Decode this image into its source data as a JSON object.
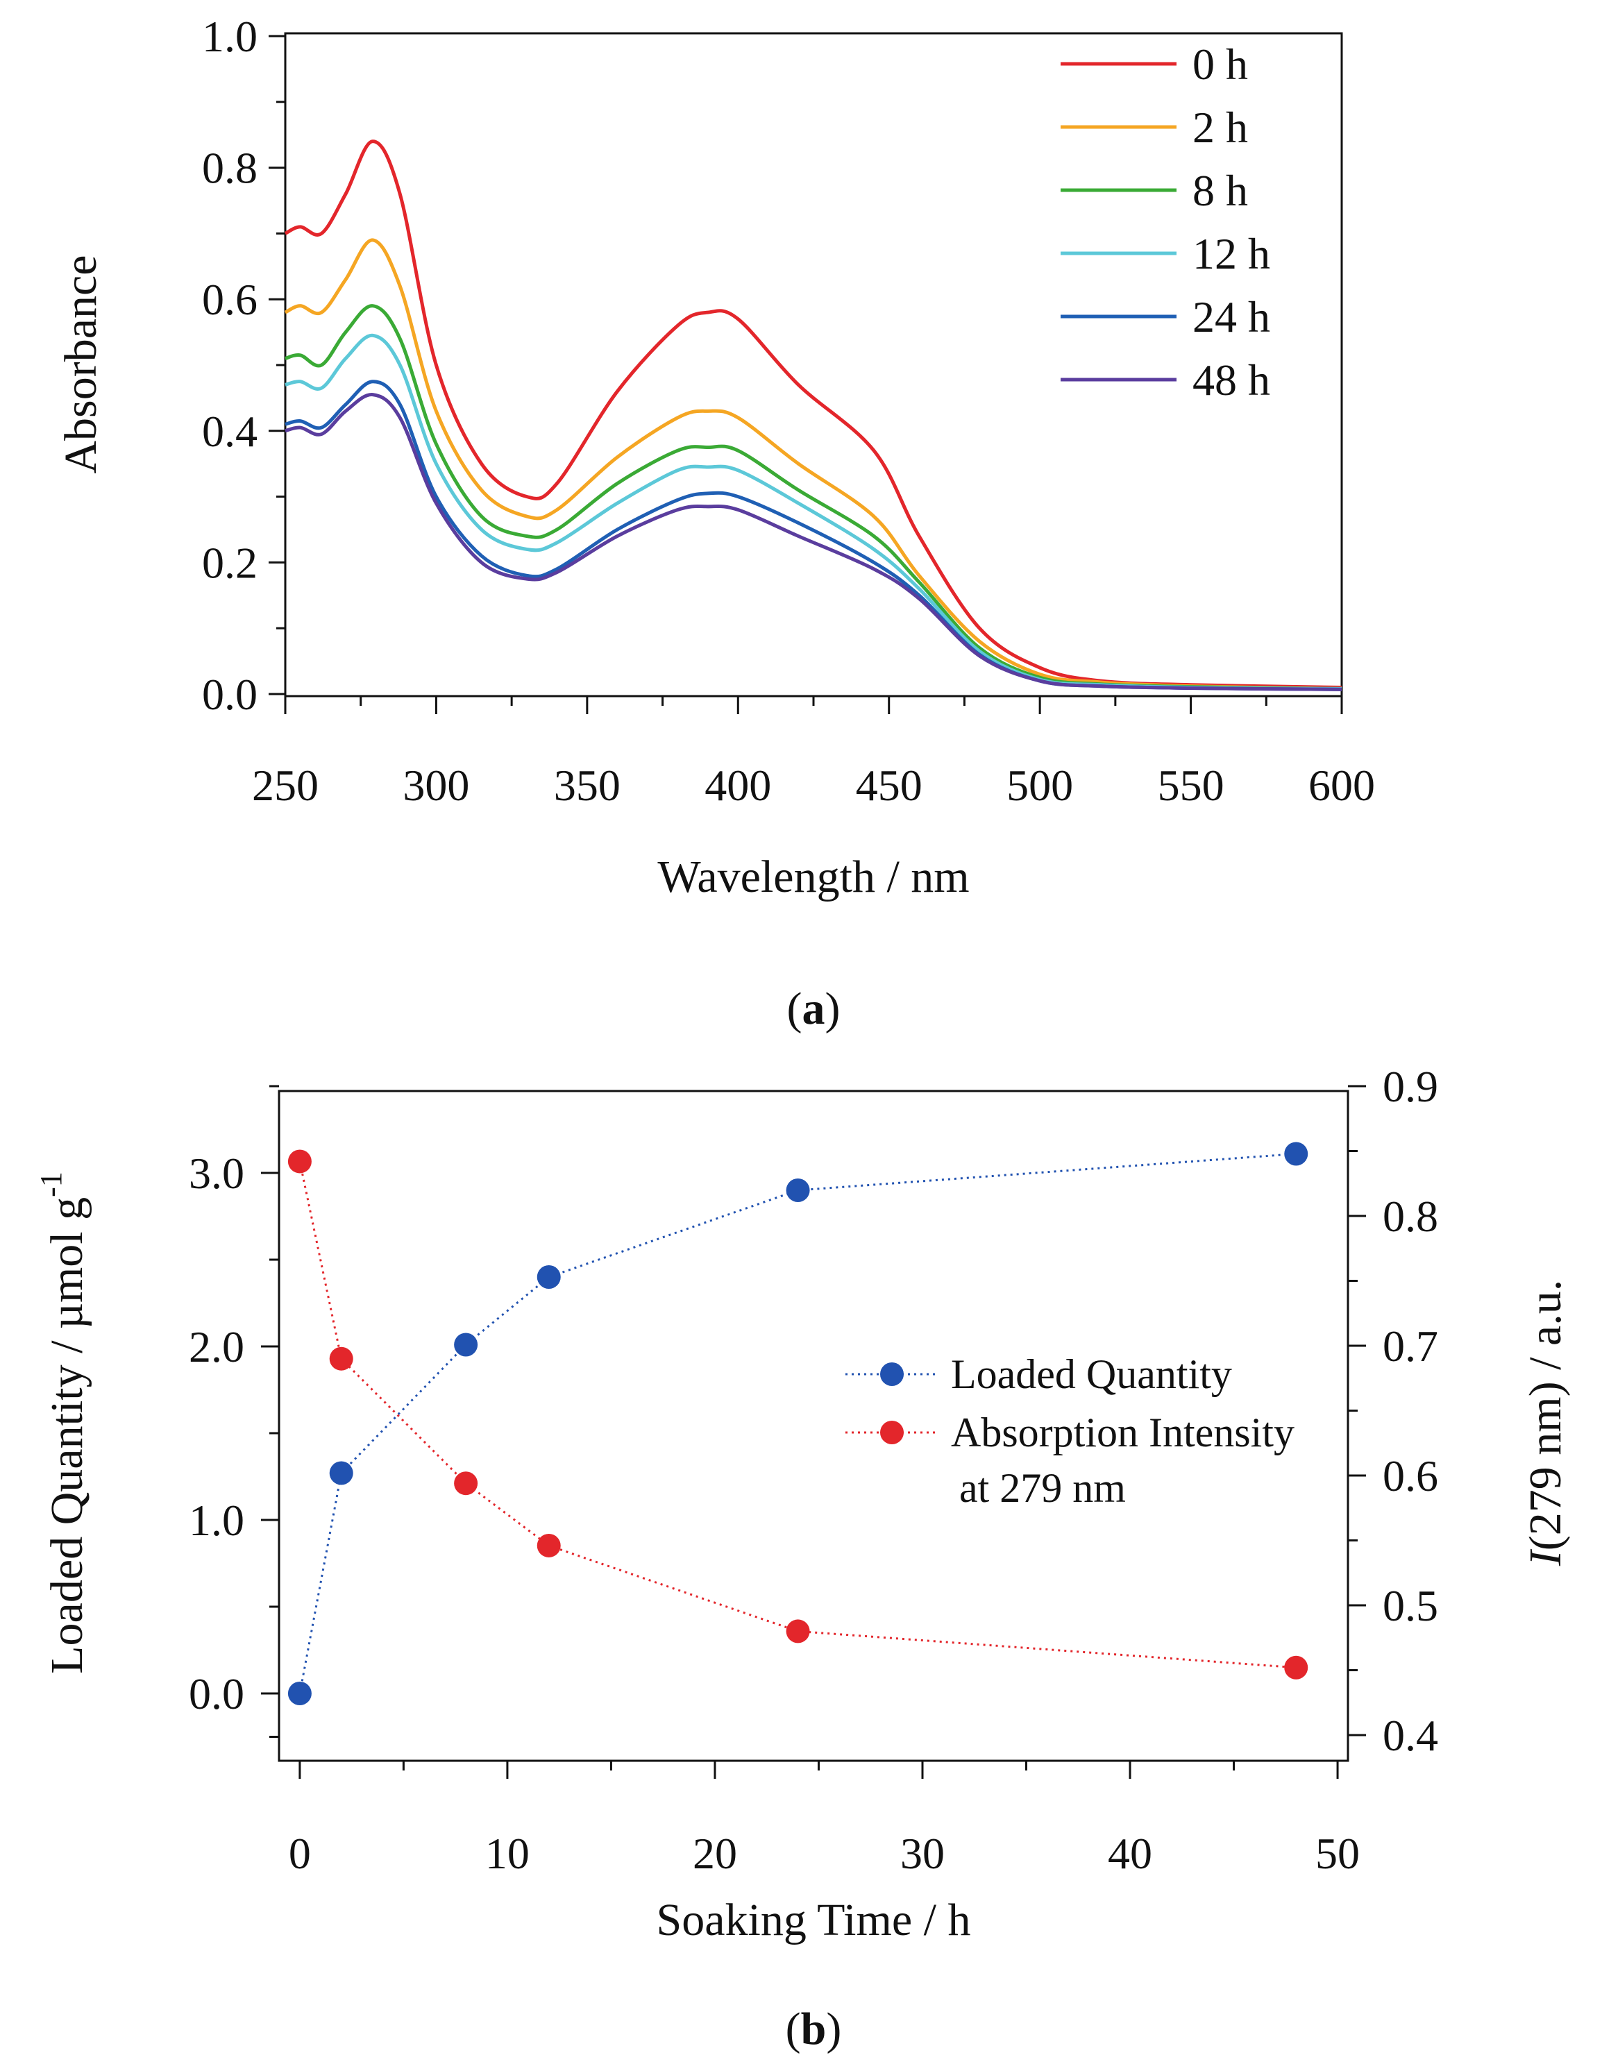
{
  "chart_data": [
    {
      "panel_label": "a",
      "type": "line",
      "xlabel": "Wavelength / nm",
      "ylabel": "Absorbance",
      "xlim": [
        250,
        600
      ],
      "ylim": [
        0.0,
        1.0
      ],
      "xticks": [
        250,
        300,
        350,
        400,
        450,
        500,
        550,
        600
      ],
      "yticks": [
        0.0,
        0.2,
        0.4,
        0.6,
        0.8,
        1.0
      ],
      "ytick_labels": [
        "0.0",
        "0.2",
        "0.4",
        "0.6",
        "0.8",
        "1.0"
      ],
      "legend_position": "top-right",
      "x": [
        250,
        255,
        262,
        270,
        279,
        288,
        300,
        315,
        330,
        340,
        360,
        380,
        390,
        400,
        420,
        445,
        460,
        480,
        500,
        520,
        550,
        600
      ],
      "series": [
        {
          "name": "0 h",
          "color": "#e3262b",
          "values": [
            0.7,
            0.71,
            0.7,
            0.76,
            0.84,
            0.76,
            0.5,
            0.35,
            0.3,
            0.32,
            0.46,
            0.56,
            0.58,
            0.57,
            0.47,
            0.37,
            0.24,
            0.1,
            0.04,
            0.02,
            0.014,
            0.01
          ]
        },
        {
          "name": "2 h",
          "color": "#f5a623",
          "values": [
            0.58,
            0.59,
            0.58,
            0.63,
            0.69,
            0.62,
            0.43,
            0.31,
            0.27,
            0.28,
            0.36,
            0.42,
            0.43,
            0.42,
            0.35,
            0.27,
            0.18,
            0.08,
            0.03,
            0.018,
            0.012,
            0.008
          ]
        },
        {
          "name": "8 h",
          "color": "#3aaa35",
          "values": [
            0.51,
            0.515,
            0.5,
            0.55,
            0.59,
            0.54,
            0.38,
            0.27,
            0.24,
            0.25,
            0.32,
            0.37,
            0.375,
            0.37,
            0.31,
            0.24,
            0.17,
            0.07,
            0.025,
            0.015,
            0.011,
            0.008
          ]
        },
        {
          "name": "12 h",
          "color": "#5cc8d8",
          "values": [
            0.47,
            0.475,
            0.465,
            0.51,
            0.545,
            0.5,
            0.35,
            0.25,
            0.22,
            0.23,
            0.29,
            0.34,
            0.345,
            0.34,
            0.29,
            0.22,
            0.16,
            0.065,
            0.022,
            0.014,
            0.01,
            0.008
          ]
        },
        {
          "name": "24 h",
          "color": "#1f5fb4",
          "values": [
            0.41,
            0.415,
            0.405,
            0.44,
            0.475,
            0.44,
            0.3,
            0.21,
            0.18,
            0.19,
            0.25,
            0.295,
            0.305,
            0.3,
            0.26,
            0.2,
            0.15,
            0.06,
            0.02,
            0.012,
            0.009,
            0.007
          ]
        },
        {
          "name": "48 h",
          "color": "#5a3d9e",
          "values": [
            0.4,
            0.405,
            0.395,
            0.43,
            0.455,
            0.42,
            0.29,
            0.2,
            0.175,
            0.185,
            0.24,
            0.28,
            0.285,
            0.28,
            0.24,
            0.19,
            0.145,
            0.058,
            0.02,
            0.012,
            0.009,
            0.007
          ]
        }
      ]
    },
    {
      "panel_label": "b",
      "type": "scatter",
      "xlabel": "Soaking Time / h",
      "ylabel_left": "Loaded Quantity / µmol g",
      "ylabel_left_superscript": "-1",
      "ylabel_right_italic": "I",
      "ylabel_right_rest": "(279 nm) / a.u.",
      "xlim": [
        -1,
        50.5
      ],
      "ylim_left": [
        -0.3,
        3.55
      ],
      "ylim_right": [
        0.395,
        0.9
      ],
      "xticks": [
        0,
        10,
        20,
        30,
        40,
        50
      ],
      "yticks_left": [
        0.0,
        1.0,
        2.0,
        3.0
      ],
      "ytick_labels_left": [
        "0.0",
        "1.0",
        "2.0",
        "3.0"
      ],
      "yticks_right": [
        0.4,
        0.5,
        0.6,
        0.7,
        0.8,
        0.9
      ],
      "ytick_labels_right": [
        "0.4",
        "0.5",
        "0.6",
        "0.7",
        "0.8",
        "0.9"
      ],
      "legend_position": "center-right",
      "x": [
        0,
        2,
        8,
        12,
        24,
        48
      ],
      "series": [
        {
          "name": "Loaded Quantity",
          "axis": "left",
          "color": "#2152b0",
          "values": [
            0.0,
            1.27,
            2.01,
            2.4,
            2.9,
            3.11
          ]
        },
        {
          "name": "Absorption Intensity",
          "name_line2": "at 279 nm",
          "axis": "right",
          "color": "#e3262b",
          "values": [
            0.842,
            0.69,
            0.594,
            0.546,
            0.48,
            0.452
          ]
        }
      ]
    }
  ]
}
